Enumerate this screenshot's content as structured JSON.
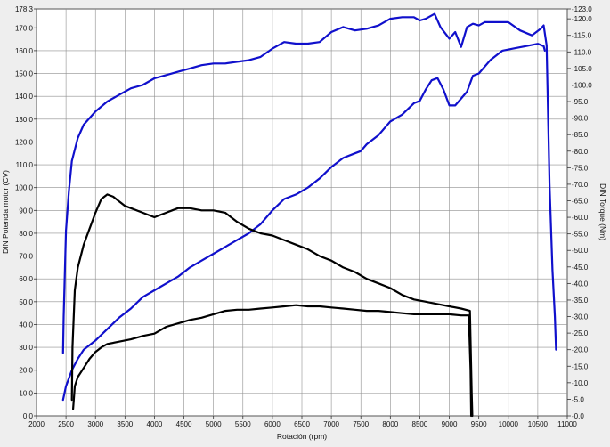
{
  "chart_data": {
    "type": "line",
    "xlabel": "Rotación (rpm)",
    "ylabel_left": "DIN Potencia motor (CV)",
    "ylabel_right": "DIN Torque (Nm)",
    "xlim": [
      2000,
      11000
    ],
    "ylim_left": [
      0,
      178.3
    ],
    "ylim_right": [
      0,
      123.0
    ],
    "xticks": [
      2000,
      2500,
      3000,
      3500,
      4000,
      4500,
      5000,
      5500,
      6000,
      6500,
      7000,
      7500,
      8000,
      8500,
      9000,
      9500,
      10000,
      10500,
      11000
    ],
    "yticks_left": [
      0,
      10,
      20,
      30,
      40,
      50,
      60,
      70,
      80,
      90,
      100,
      110,
      120,
      130,
      140,
      150,
      160,
      170,
      178.3
    ],
    "yticks_right": [
      0,
      5,
      10,
      15,
      20,
      25,
      30,
      35,
      40,
      45,
      50,
      55,
      60,
      65,
      70,
      75,
      80,
      85,
      90,
      95,
      100,
      105,
      110,
      115,
      120,
      123
    ],
    "ytick_labels_left": [
      "0.0",
      "10.0",
      "20.0",
      "30.0",
      "40.0",
      "50.0",
      "60.0",
      "70.0",
      "80.0",
      "90.0",
      "100.0",
      "110.0",
      "120.0",
      "130.0",
      "140.0",
      "150.0",
      "160.0",
      "170.0",
      "178.3"
    ],
    "ytick_labels_right": [
      "0.0",
      "5.0",
      "10.0",
      "15.0",
      "20.0",
      "25.0",
      "30.0",
      "35.0",
      "40.0",
      "45.0",
      "50.0",
      "55.0",
      "60.0",
      "65.0",
      "70.0",
      "75.0",
      "80.0",
      "85.0",
      "90.0",
      "95.0",
      "100.0",
      "105.0",
      "110.0",
      "115.0",
      "120.0",
      "123.0"
    ],
    "grid": true,
    "series": [
      {
        "color": "#1010cc",
        "axis": "right",
        "x": [
          2450,
          2460,
          2500,
          2550,
          2600,
          2700,
          2800,
          3000,
          3200,
          3400,
          3600,
          3800,
          4000,
          4200,
          4400,
          4600,
          4800,
          5000,
          5200,
          5400,
          5600,
          5800,
          6000,
          6200,
          6400,
          6600,
          6800,
          7000,
          7200,
          7400,
          7600,
          7800,
          8000,
          8200,
          8400,
          8500,
          8600,
          8750,
          8850,
          9000,
          9100,
          9200,
          9300,
          9400,
          9500,
          9600,
          9800,
          10000,
          10200,
          10400,
          10550,
          10600,
          10650,
          10700,
          10750,
          10790,
          10810
        ],
        "y": [
          19,
          30,
          56,
          68,
          77,
          84,
          88,
          92,
          95,
          97,
          99,
          100,
          102,
          103,
          104,
          105,
          106,
          106.5,
          106.5,
          107,
          107.5,
          108.5,
          111,
          113,
          112.5,
          112.5,
          113,
          116,
          117.5,
          116.5,
          117,
          118,
          120,
          120.5,
          120.5,
          119.5,
          120,
          121.5,
          117.5,
          114,
          116,
          111.5,
          117.5,
          118.5,
          118,
          119,
          119,
          119,
          116.5,
          115,
          117,
          118,
          112,
          70,
          44,
          30,
          20
        ]
      },
      {
        "color": "#1010cc",
        "axis": "left",
        "x": [
          2450,
          2500,
          2600,
          2700,
          2800,
          3000,
          3200,
          3400,
          3600,
          3800,
          4000,
          4200,
          4400,
          4600,
          4800,
          5000,
          5200,
          5400,
          5600,
          5800,
          6000,
          6200,
          6400,
          6600,
          6800,
          7000,
          7200,
          7400,
          7500,
          7600,
          7800,
          8000,
          8200,
          8400,
          8500,
          8600,
          8700,
          8800,
          8900,
          9000,
          9100,
          9300,
          9400,
          9500,
          9700,
          9900,
          10100,
          10300,
          10500,
          10600,
          10620
        ],
        "y": [
          7,
          13,
          20,
          25,
          29,
          33,
          38,
          43,
          47,
          52,
          55,
          58,
          61,
          65,
          68,
          71,
          74,
          77,
          80,
          84,
          90,
          95,
          97,
          100,
          104,
          109,
          113,
          115,
          116,
          119,
          123,
          129,
          132,
          137,
          138,
          143,
          147,
          148,
          143,
          136,
          136,
          142,
          149,
          150,
          156,
          160,
          161,
          162,
          163,
          162,
          160
        ]
      },
      {
        "color": "#000000",
        "axis": "left",
        "x": [
          2600,
          2610,
          2650,
          2700,
          2800,
          2900,
          3000,
          3100,
          3200,
          3300,
          3400,
          3500,
          3600,
          3800,
          4000,
          4100,
          4200,
          4300,
          4400,
          4600,
          4800,
          5000,
          5200,
          5300,
          5400,
          5600,
          5800,
          6000,
          6200,
          6400,
          6600,
          6800,
          7000,
          7200,
          7400,
          7600,
          7800,
          8000,
          8200,
          8400,
          8600,
          8800,
          9000,
          9200,
          9350,
          9380,
          9390
        ],
        "y": [
          7,
          30,
          55,
          65,
          75,
          82,
          89,
          95,
          97,
          96,
          94,
          92,
          91,
          89,
          87,
          88,
          89,
          90,
          91,
          91,
          90,
          90,
          89,
          87,
          85,
          82,
          80,
          79,
          77,
          75,
          73,
          70,
          68,
          65,
          63,
          60,
          58,
          56,
          53,
          51,
          50,
          49,
          48,
          47,
          46,
          10,
          0
        ]
      },
      {
        "color": "#000000",
        "axis": "left",
        "x": [
          2620,
          2650,
          2700,
          2800,
          2900,
          3000,
          3100,
          3200,
          3400,
          3600,
          3800,
          4000,
          4200,
          4400,
          4600,
          4800,
          5000,
          5200,
          5400,
          5600,
          5800,
          6000,
          6200,
          6400,
          6600,
          6800,
          7000,
          7200,
          7400,
          7600,
          7800,
          8000,
          8200,
          8400,
          8600,
          8800,
          9000,
          9200,
          9330,
          9360,
          9370
        ],
        "y": [
          3,
          13,
          17,
          21,
          25,
          28,
          30,
          31.5,
          32.5,
          33.5,
          35,
          36,
          39,
          40.5,
          42,
          43,
          44.5,
          46,
          46.5,
          46.5,
          47,
          47.5,
          48,
          48.5,
          48,
          48,
          47.5,
          47,
          46.5,
          46,
          46,
          45.5,
          45,
          44.5,
          44.5,
          44.5,
          44.5,
          44,
          44,
          20,
          0
        ]
      }
    ]
  }
}
